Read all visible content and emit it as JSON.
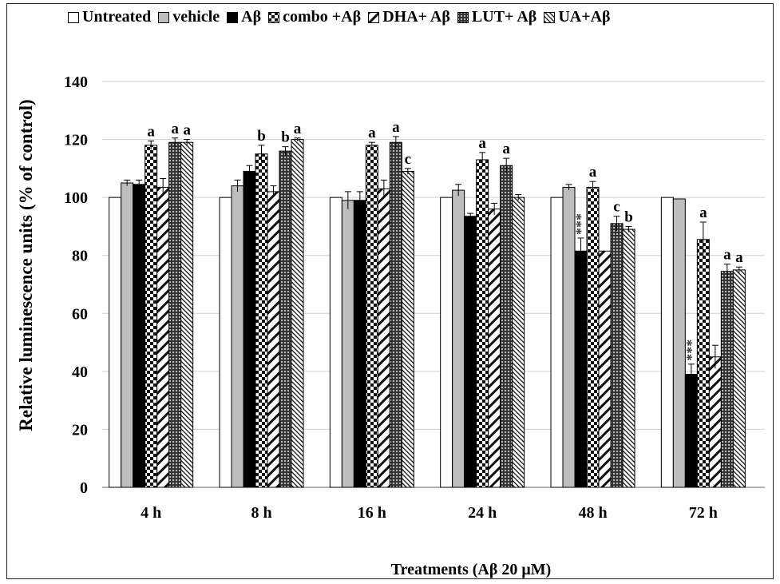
{
  "chart_data": {
    "type": "bar",
    "xlabel": "Treatments (Aβ 20 μM)",
    "ylabel": "Relative luminescence units (% of control)",
    "ylim": [
      0,
      140
    ],
    "yticks": [
      "0",
      "20",
      "40",
      "60",
      "80",
      "100",
      "120",
      "140"
    ],
    "categories": [
      "4 h",
      "8 h",
      "16 h",
      "24 h",
      "48 h",
      "72 h"
    ],
    "legend_position": "top",
    "series": [
      {
        "name": "Untreated",
        "pattern": "white",
        "values": [
          100,
          100,
          100,
          100,
          100,
          100
        ],
        "errors": [
          0,
          0,
          0,
          0,
          0,
          0
        ],
        "annotations": [
          "",
          "",
          "",
          "",
          "",
          ""
        ]
      },
      {
        "name": "vehicle",
        "pattern": "gray",
        "values": [
          105,
          104,
          99,
          102.5,
          103.5,
          99.5
        ],
        "errors": [
          1,
          2,
          3,
          2,
          1,
          0
        ],
        "annotations": [
          "",
          "",
          "",
          "",
          "",
          ""
        ]
      },
      {
        "name": "Aβ",
        "pattern": "black",
        "values": [
          104.5,
          109,
          99,
          93.5,
          81.5,
          39
        ],
        "errors": [
          1.5,
          2,
          3,
          1,
          4.5,
          3.5
        ],
        "annotations": [
          "",
          "",
          "",
          "",
          "***",
          "***"
        ]
      },
      {
        "name": "combo +Aβ",
        "pattern": "checker",
        "values": [
          118,
          115,
          118,
          113,
          103.5,
          85.5
        ],
        "errors": [
          1.5,
          3,
          1,
          2.5,
          2,
          6
        ],
        "annotations": [
          "a",
          "b",
          "a",
          "a",
          "a",
          "a"
        ]
      },
      {
        "name": "DHA+ Aβ",
        "pattern": "diag-wide",
        "values": [
          103.5,
          102,
          103,
          96,
          81.5,
          45
        ],
        "errors": [
          3,
          2,
          3,
          2,
          0,
          4
        ],
        "annotations": [
          "",
          "",
          "",
          "",
          "",
          ""
        ]
      },
      {
        "name": "LUT+ Aβ",
        "pattern": "grid",
        "values": [
          119,
          116,
          119,
          111,
          91,
          74.5
        ],
        "errors": [
          1.5,
          1.5,
          2,
          2.5,
          2.5,
          2.5
        ],
        "annotations": [
          "a",
          "b",
          "a",
          "a",
          "c",
          "a"
        ]
      },
      {
        "name": "UA+Aβ",
        "pattern": "diag-fine",
        "values": [
          119,
          120,
          109,
          100,
          89,
          75
        ],
        "errors": [
          1,
          0.5,
          1,
          1,
          1,
          1
        ],
        "annotations": [
          "a",
          "a",
          "c",
          "",
          "b",
          "a"
        ]
      }
    ]
  }
}
